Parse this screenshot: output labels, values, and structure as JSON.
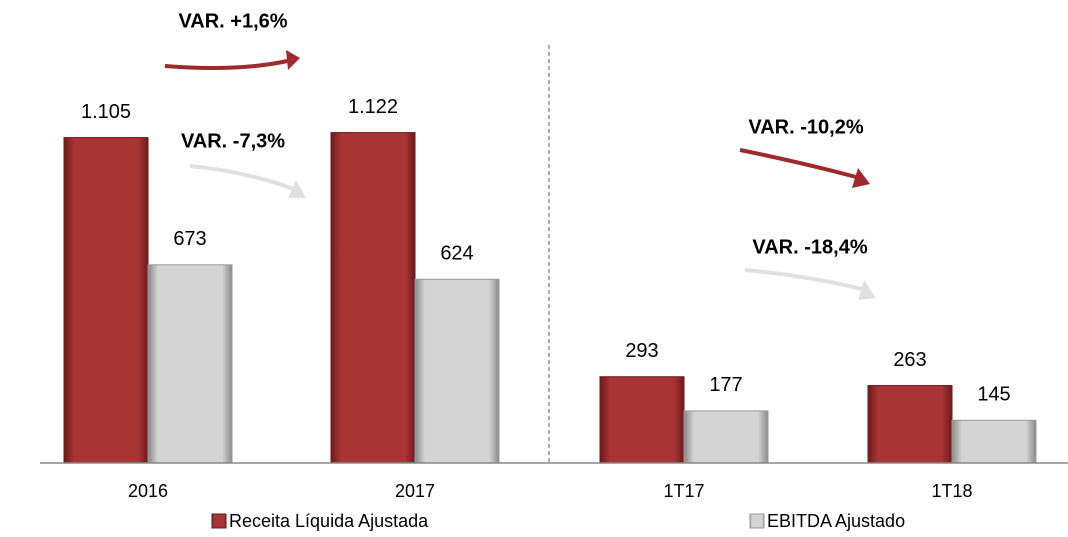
{
  "chart_data": {
    "type": "bar",
    "categories": [
      "2016",
      "2017",
      "1T17",
      "1T18"
    ],
    "series": [
      {
        "name": "Receita Líquida Ajustada",
        "color": "#9e2a2b",
        "values": [
          1105,
          1122,
          293,
          263
        ],
        "value_labels": [
          "1.105",
          "1.122",
          "293",
          "263"
        ]
      },
      {
        "name": "EBITDA Ajustado",
        "color": "#c8c8c8",
        "values": [
          673,
          624,
          177,
          145
        ],
        "value_labels": [
          "673",
          "624",
          "177",
          "145"
        ]
      }
    ],
    "annotations": [
      "VAR. +1,6%",
      "VAR. -7,3%",
      "VAR. -10,2%",
      "VAR. -18,4%"
    ]
  }
}
